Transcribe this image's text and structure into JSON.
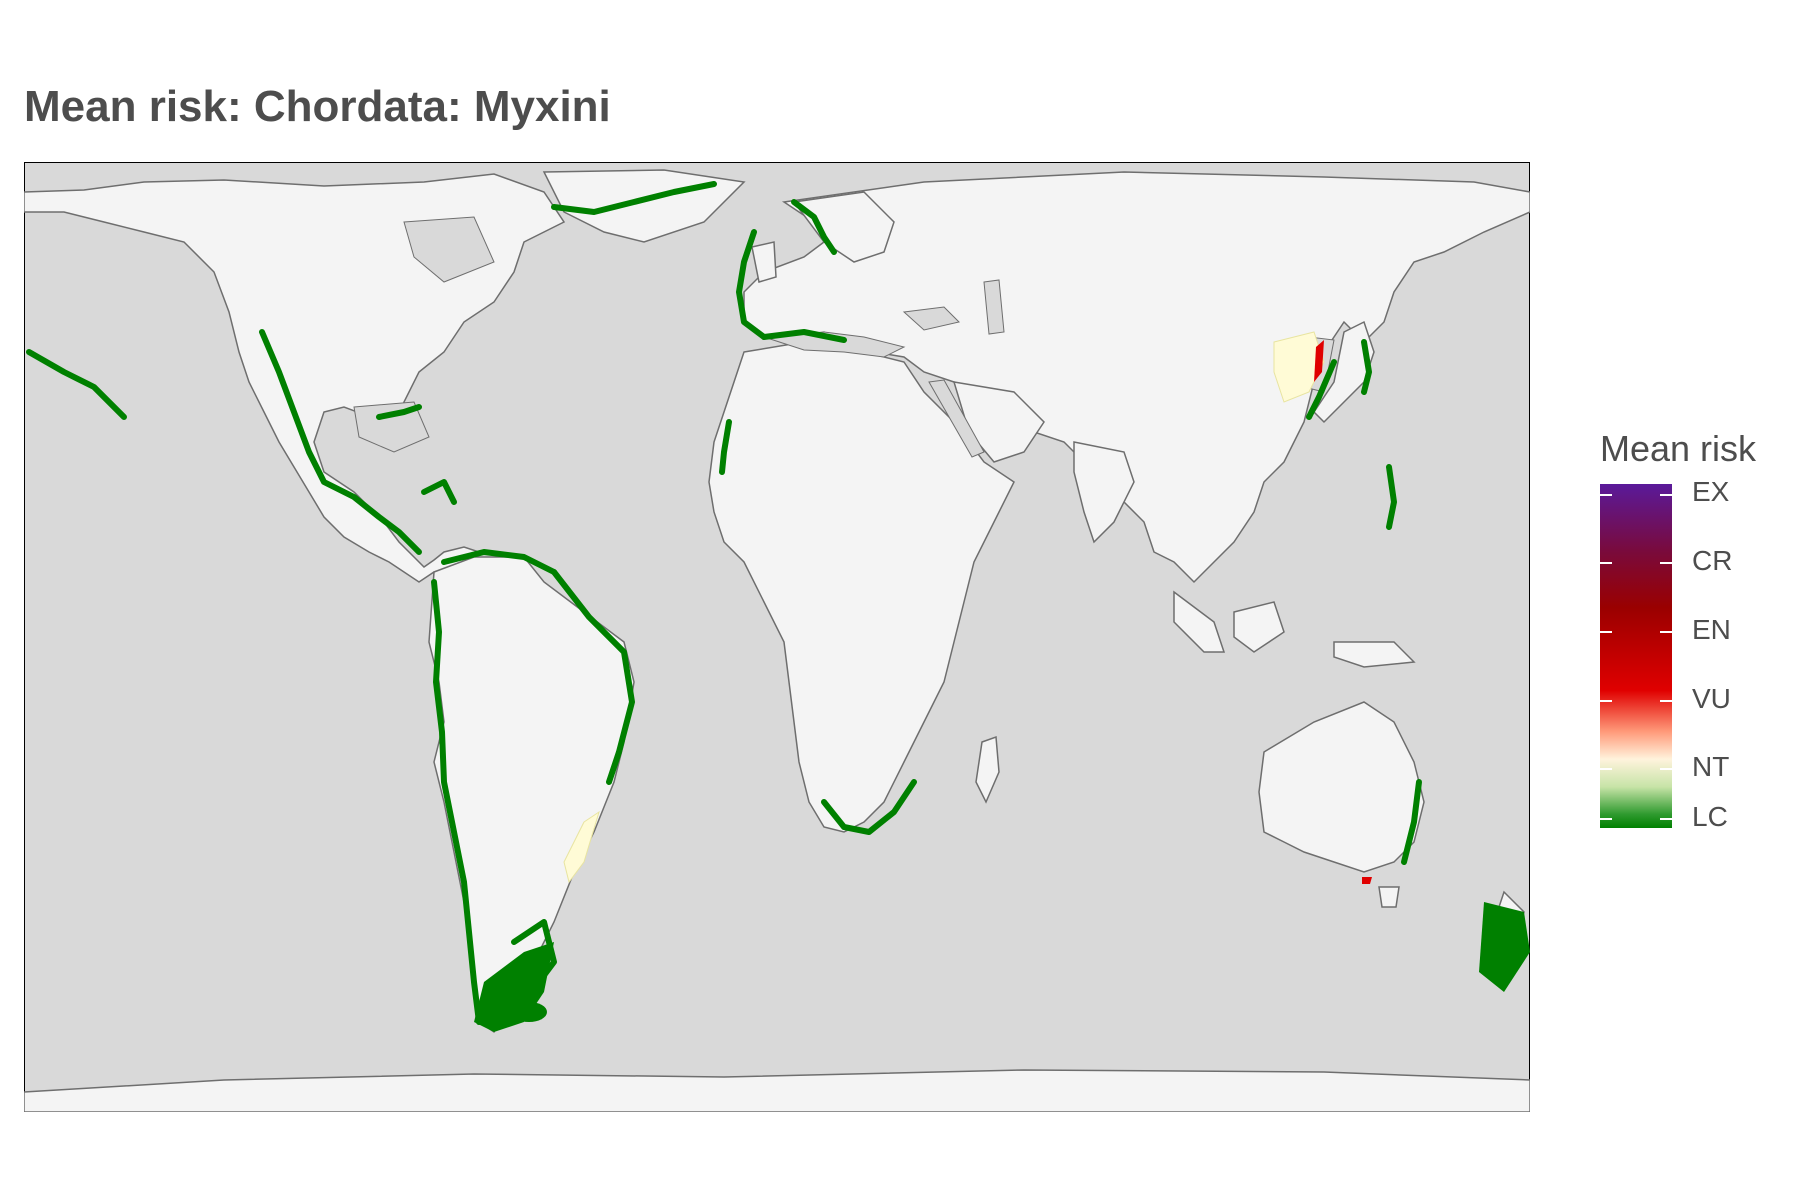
{
  "title": "Mean risk: Chordata: Myxini",
  "legend": {
    "title": "Mean risk",
    "levels": [
      "EX",
      "CR",
      "EN",
      "VU",
      "NT",
      "LC"
    ]
  },
  "colors": {
    "ocean": "#d9d9d9",
    "land": "#f2f2f2",
    "coast": "#7f7f7f",
    "lc": "#008000",
    "nt": "#fffbd6",
    "vu": "#e00000",
    "ex": "#5a1a9a"
  },
  "map": {
    "projection": "world (equal-area style)",
    "fill_scale": "Mean risk"
  }
}
